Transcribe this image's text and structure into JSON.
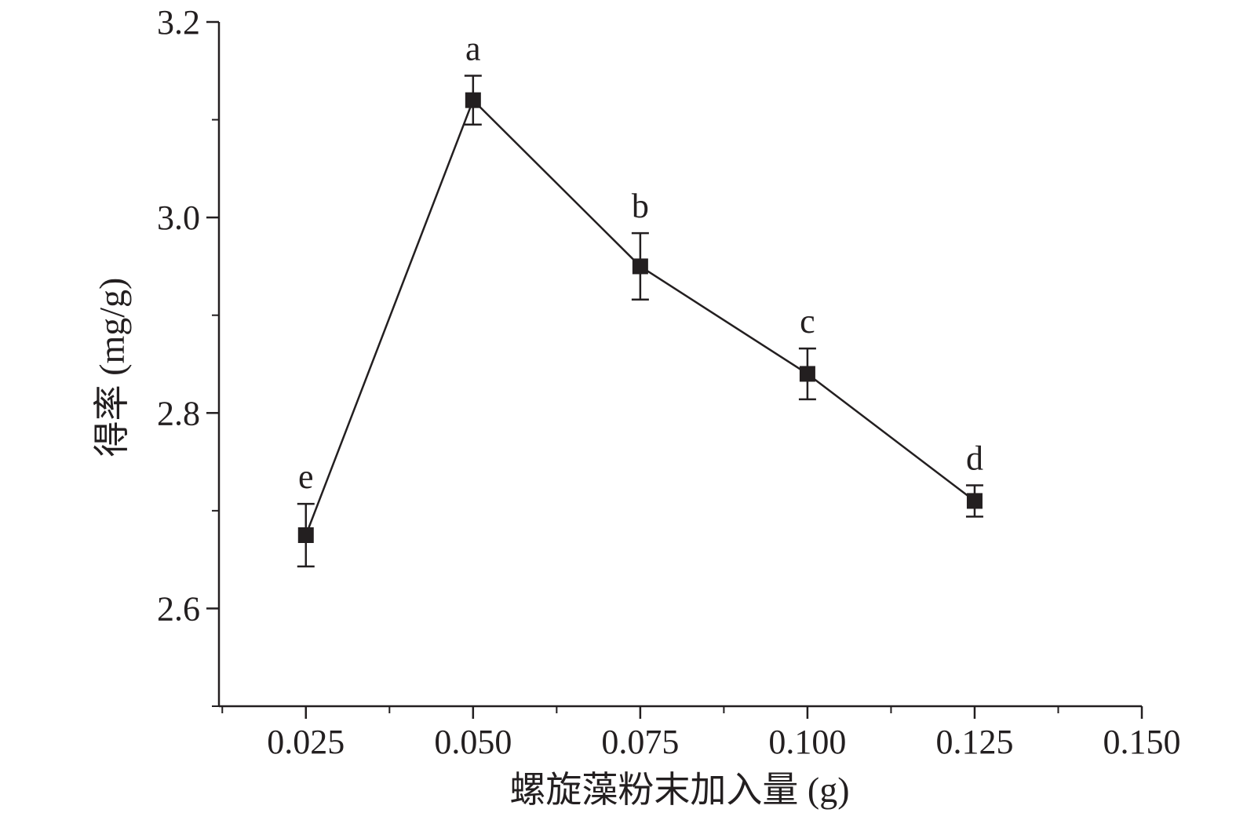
{
  "chart_data": {
    "type": "line",
    "xlabel": "螺旋藻粉末加入量 (g)",
    "ylabel": "得率 (mg/g)",
    "xlim": [
      0.012,
      0.15
    ],
    "ylim": [
      2.5,
      3.2
    ],
    "x_ticks": [
      "0.025",
      "0.050",
      "0.075",
      "0.100",
      "0.125",
      "0.150"
    ],
    "y_ticks": [
      "2.6",
      "2.8",
      "3.0",
      "3.2"
    ],
    "grid": false,
    "series": [
      {
        "x": [
          0.025,
          0.05,
          0.075,
          0.1,
          0.125
        ],
        "y": [
          2.675,
          3.12,
          2.95,
          2.84,
          2.71
        ],
        "error": [
          0.032,
          0.025,
          0.034,
          0.026,
          0.016
        ],
        "labels": [
          "e",
          "a",
          "b",
          "c",
          "d"
        ],
        "color": "#231f20",
        "marker": "square"
      }
    ]
  }
}
